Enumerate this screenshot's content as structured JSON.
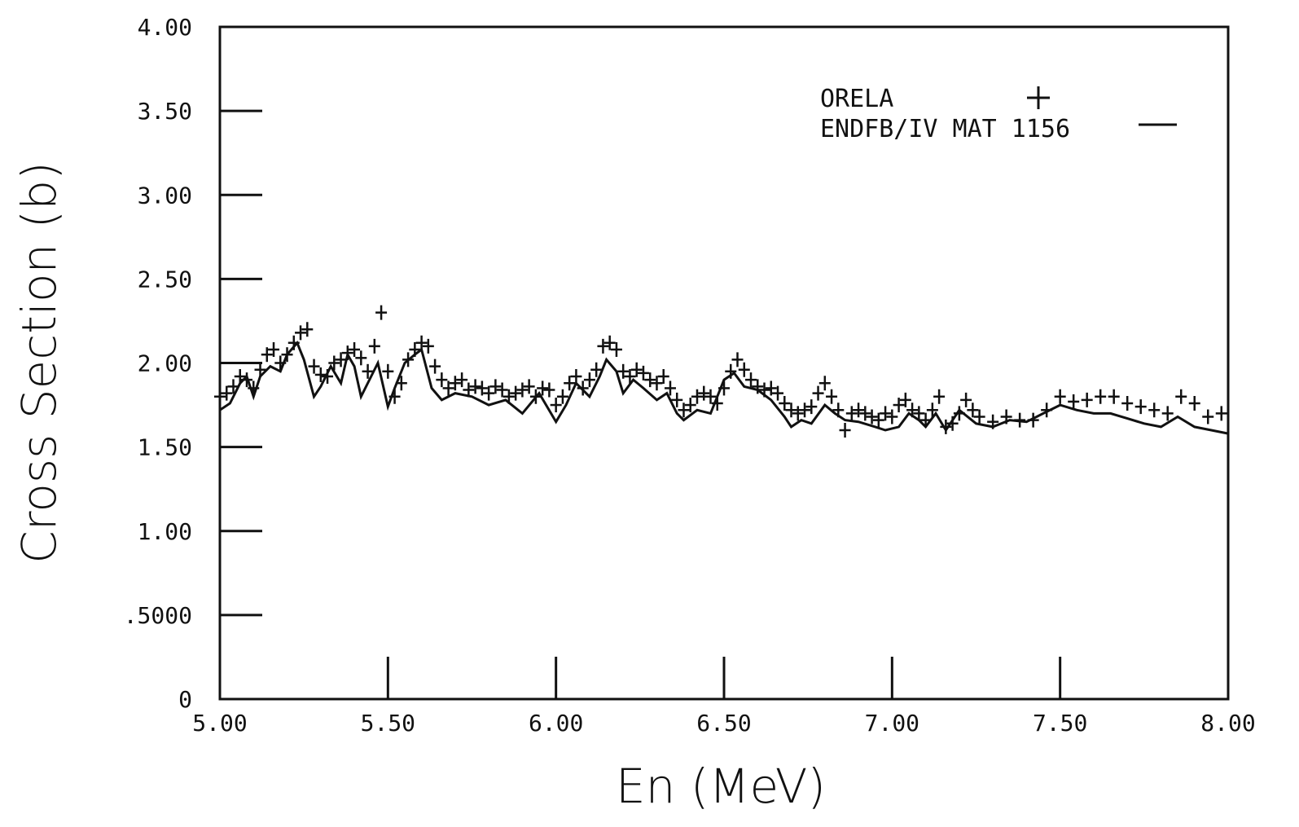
{
  "chart_data": {
    "type": "line",
    "title": "",
    "xlabel": "En (MeV)",
    "ylabel": "Cross Section (b)",
    "xlim": [
      5.0,
      8.0
    ],
    "ylim": [
      0,
      4.0
    ],
    "x_ticks": [
      5.0,
      5.5,
      6.0,
      6.5,
      7.0,
      7.5,
      8.0
    ],
    "x_tick_labels": [
      "5.00",
      "5.50",
      "6.00",
      "6.50",
      "7.00",
      "7.50",
      "8.00"
    ],
    "y_ticks": [
      0,
      0.5,
      1.0,
      1.5,
      2.0,
      2.5,
      3.0,
      3.5,
      4.0
    ],
    "y_tick_labels": [
      "0",
      ".5000",
      "1.00",
      "1.50",
      "2.00",
      "2.50",
      "3.00",
      "3.50",
      "4.00"
    ],
    "grid": false,
    "legend_position": "top-right",
    "series": [
      {
        "name": "ORELA",
        "marker": "plus",
        "color": "#111111",
        "x": [
          5.0,
          5.02,
          5.04,
          5.06,
          5.08,
          5.1,
          5.12,
          5.14,
          5.16,
          5.18,
          5.2,
          5.22,
          5.24,
          5.26,
          5.28,
          5.3,
          5.32,
          5.34,
          5.36,
          5.38,
          5.4,
          5.42,
          5.44,
          5.46,
          5.48,
          5.5,
          5.52,
          5.54,
          5.56,
          5.58,
          5.6,
          5.62,
          5.64,
          5.66,
          5.68,
          5.7,
          5.72,
          5.74,
          5.76,
          5.78,
          5.8,
          5.82,
          5.84,
          5.86,
          5.88,
          5.9,
          5.92,
          5.94,
          5.96,
          5.98,
          6.0,
          6.02,
          6.04,
          6.06,
          6.08,
          6.1,
          6.12,
          6.14,
          6.16,
          6.18,
          6.2,
          6.22,
          6.24,
          6.26,
          6.28,
          6.3,
          6.32,
          6.34,
          6.36,
          6.38,
          6.4,
          6.42,
          6.44,
          6.46,
          6.48,
          6.5,
          6.52,
          6.54,
          6.56,
          6.58,
          6.6,
          6.62,
          6.64,
          6.66,
          6.68,
          6.7,
          6.72,
          6.74,
          6.76,
          6.78,
          6.8,
          6.82,
          6.84,
          6.86,
          6.88,
          6.9,
          6.92,
          6.94,
          6.96,
          6.98,
          7.0,
          7.02,
          7.04,
          7.06,
          7.08,
          7.1,
          7.12,
          7.14,
          7.16,
          7.18,
          7.2,
          7.22,
          7.24,
          7.26,
          7.3,
          7.34,
          7.38,
          7.42,
          7.46,
          7.5,
          7.54,
          7.58,
          7.62,
          7.66,
          7.7,
          7.74,
          7.78,
          7.82,
          7.86,
          7.9,
          7.94,
          7.98
        ],
        "values": [
          1.8,
          1.82,
          1.86,
          1.92,
          1.9,
          1.85,
          1.96,
          2.05,
          2.08,
          2.0,
          2.05,
          2.12,
          2.18,
          2.2,
          1.98,
          1.93,
          1.92,
          2.0,
          2.02,
          2.06,
          2.08,
          2.03,
          1.95,
          2.1,
          2.3,
          1.95,
          1.8,
          1.88,
          2.02,
          2.08,
          2.12,
          2.1,
          1.98,
          1.9,
          1.85,
          1.88,
          1.9,
          1.84,
          1.86,
          1.85,
          1.82,
          1.86,
          1.84,
          1.8,
          1.82,
          1.84,
          1.86,
          1.8,
          1.85,
          1.84,
          1.75,
          1.8,
          1.88,
          1.92,
          1.85,
          1.9,
          1.96,
          2.1,
          2.12,
          2.08,
          1.95,
          1.92,
          1.96,
          1.94,
          1.9,
          1.88,
          1.92,
          1.85,
          1.78,
          1.72,
          1.75,
          1.8,
          1.82,
          1.8,
          1.76,
          1.85,
          1.95,
          2.02,
          1.96,
          1.9,
          1.86,
          1.84,
          1.85,
          1.82,
          1.76,
          1.72,
          1.7,
          1.72,
          1.74,
          1.82,
          1.88,
          1.8,
          1.72,
          1.6,
          1.7,
          1.72,
          1.7,
          1.68,
          1.66,
          1.7,
          1.68,
          1.75,
          1.78,
          1.72,
          1.7,
          1.66,
          1.72,
          1.8,
          1.62,
          1.64,
          1.7,
          1.78,
          1.72,
          1.68,
          1.65,
          1.68,
          1.66,
          1.66,
          1.72,
          1.8,
          1.77,
          1.78,
          1.8,
          1.8,
          1.76,
          1.74,
          1.72,
          1.7,
          1.8,
          1.76,
          1.68,
          1.7
        ]
      },
      {
        "name": "ENDFB/IV MAT 1156",
        "marker": "line",
        "color": "#111111",
        "x": [
          5.0,
          5.03,
          5.06,
          5.08,
          5.1,
          5.12,
          5.15,
          5.18,
          5.2,
          5.23,
          5.25,
          5.28,
          5.3,
          5.33,
          5.36,
          5.38,
          5.4,
          5.42,
          5.45,
          5.47,
          5.5,
          5.52,
          5.55,
          5.58,
          5.6,
          5.63,
          5.66,
          5.7,
          5.75,
          5.8,
          5.85,
          5.9,
          5.95,
          6.0,
          6.03,
          6.06,
          6.1,
          6.13,
          6.15,
          6.18,
          6.2,
          6.23,
          6.26,
          6.3,
          6.33,
          6.36,
          6.38,
          6.42,
          6.46,
          6.5,
          6.53,
          6.56,
          6.6,
          6.64,
          6.68,
          6.7,
          6.73,
          6.76,
          6.8,
          6.83,
          6.86,
          6.9,
          6.95,
          6.98,
          7.02,
          7.05,
          7.08,
          7.1,
          7.13,
          7.16,
          7.2,
          7.25,
          7.3,
          7.35,
          7.4,
          7.45,
          7.5,
          7.55,
          7.6,
          7.65,
          7.7,
          7.75,
          7.8,
          7.85,
          7.9,
          7.95,
          8.0
        ],
        "values": [
          1.72,
          1.76,
          1.88,
          1.92,
          1.8,
          1.92,
          1.98,
          1.95,
          2.05,
          2.12,
          2.02,
          1.8,
          1.86,
          1.98,
          1.88,
          2.05,
          1.98,
          1.8,
          1.92,
          2.0,
          1.74,
          1.85,
          2.0,
          2.05,
          2.08,
          1.85,
          1.78,
          1.82,
          1.8,
          1.75,
          1.78,
          1.7,
          1.82,
          1.65,
          1.75,
          1.88,
          1.8,
          1.92,
          2.02,
          1.95,
          1.82,
          1.9,
          1.85,
          1.78,
          1.82,
          1.7,
          1.66,
          1.72,
          1.7,
          1.9,
          1.94,
          1.86,
          1.84,
          1.78,
          1.68,
          1.62,
          1.66,
          1.64,
          1.75,
          1.7,
          1.66,
          1.65,
          1.62,
          1.6,
          1.62,
          1.7,
          1.66,
          1.62,
          1.7,
          1.6,
          1.72,
          1.64,
          1.62,
          1.66,
          1.65,
          1.7,
          1.75,
          1.72,
          1.7,
          1.7,
          1.67,
          1.64,
          1.62,
          1.68,
          1.62,
          1.6,
          1.58
        ]
      }
    ]
  }
}
